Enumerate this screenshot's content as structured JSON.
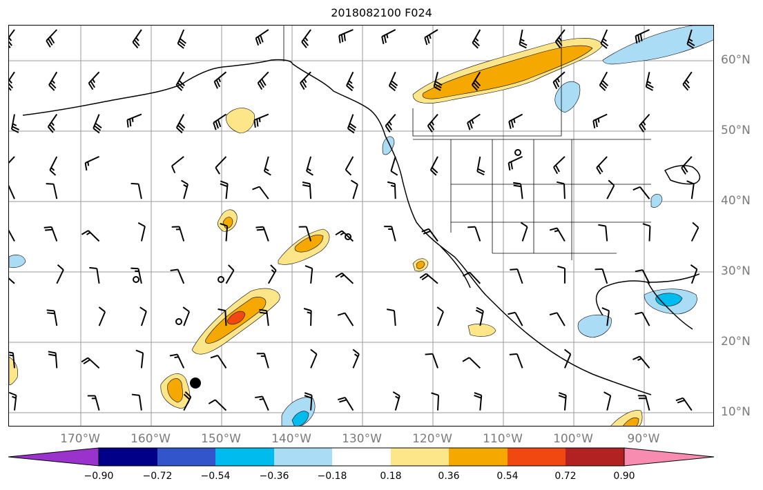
{
  "title": "2018082100 F024",
  "lon_labels": [
    "170°W",
    "160°W",
    "150°W",
    "140°W",
    "130°W",
    "120°W",
    "110°W",
    "100°W",
    "90°W"
  ],
  "lat_labels": [
    "60°N",
    "50°N",
    "40°N",
    "30°N",
    "20°N",
    "10°N"
  ],
  "colorbar": {
    "tick_labels": [
      "−0.90",
      "−0.72",
      "−0.54",
      "−0.36",
      "−0.18",
      "0.18",
      "0.36",
      "0.54",
      "0.72",
      "0.90"
    ],
    "colors": [
      "#9933cc",
      "#000088",
      "#3355cc",
      "#00bbee",
      "#aaddf5",
      "#ffffff",
      "#fde68a",
      "#f5a800",
      "#f04810",
      "#b22222",
      "#f78cb0"
    ]
  },
  "map": {
    "projection": "plate carrée",
    "lon_range": [
      -180,
      -80
    ],
    "lat_range": [
      8,
      65
    ],
    "gridlines": true,
    "fields": [
      "shaded anomaly contours",
      "wind barbs",
      "coastlines",
      "US state borders"
    ]
  }
}
